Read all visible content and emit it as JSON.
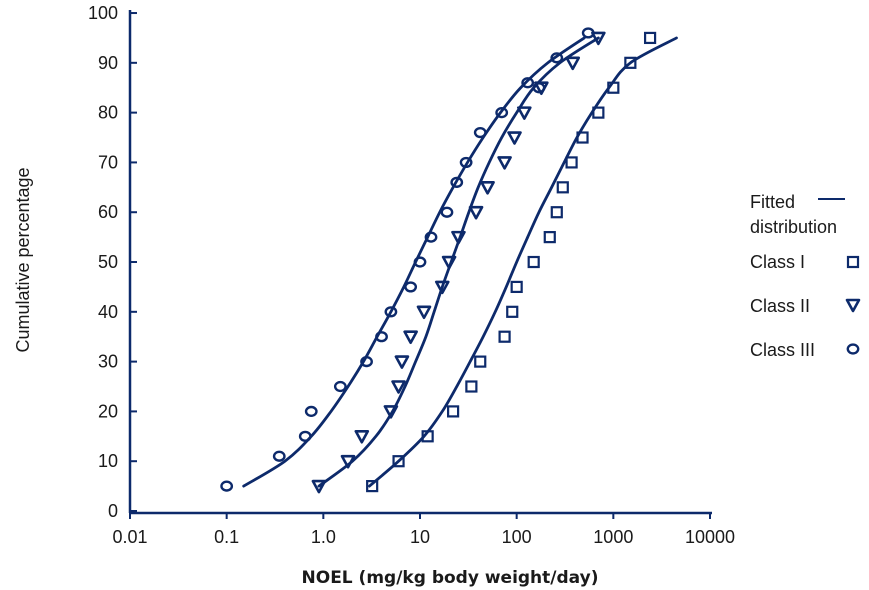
{
  "chart_data": {
    "type": "scatter",
    "xlabel": "NOEL (mg/kg body weight/day)",
    "ylabel": "Cumulative percentage",
    "x_scale": "log",
    "xlim": [
      0.01,
      10000
    ],
    "ylim": [
      0,
      100
    ],
    "x_ticks": [
      "0.01",
      "0.1",
      "1.0",
      "10",
      "100",
      "1000",
      "10000"
    ],
    "y_ticks": [
      "0",
      "10",
      "20",
      "30",
      "40",
      "50",
      "60",
      "70",
      "80",
      "90",
      "100"
    ],
    "legend": {
      "position": "right",
      "fitted_label_line1": "Fitted",
      "fitted_label_line2": "distribution",
      "entries": [
        "Class I",
        "Class II",
        "Class III"
      ]
    },
    "color": "#0d2a6b",
    "series": [
      {
        "name": "Class I",
        "marker": "square",
        "points": [
          [
            3.2,
            5
          ],
          [
            6,
            10
          ],
          [
            12,
            15
          ],
          [
            22,
            20
          ],
          [
            34,
            25
          ],
          [
            42,
            30
          ],
          [
            75,
            35
          ],
          [
            90,
            40
          ],
          [
            100,
            45
          ],
          [
            150,
            50
          ],
          [
            220,
            55
          ],
          [
            260,
            60
          ],
          [
            300,
            65
          ],
          [
            370,
            70
          ],
          [
            480,
            75
          ],
          [
            700,
            80
          ],
          [
            1000,
            85
          ],
          [
            1500,
            90
          ],
          [
            2400,
            95
          ]
        ],
        "fitted": [
          [
            3,
            5
          ],
          [
            6,
            10
          ],
          [
            11,
            15
          ],
          [
            17,
            20
          ],
          [
            24,
            25
          ],
          [
            33,
            30
          ],
          [
            45,
            35
          ],
          [
            60,
            40
          ],
          [
            78,
            45
          ],
          [
            100,
            50
          ],
          [
            130,
            55
          ],
          [
            170,
            60
          ],
          [
            230,
            65
          ],
          [
            310,
            70
          ],
          [
            420,
            75
          ],
          [
            600,
            80
          ],
          [
            900,
            85
          ],
          [
            1500,
            90
          ],
          [
            4500,
            95
          ]
        ]
      },
      {
        "name": "Class II",
        "marker": "triangle",
        "points": [
          [
            0.9,
            5
          ],
          [
            1.8,
            10
          ],
          [
            2.5,
            15
          ],
          [
            5,
            20
          ],
          [
            6,
            25
          ],
          [
            6.5,
            30
          ],
          [
            8,
            35
          ],
          [
            11,
            40
          ],
          [
            17,
            45
          ],
          [
            20,
            50
          ],
          [
            25,
            55
          ],
          [
            38,
            60
          ],
          [
            50,
            65
          ],
          [
            75,
            70
          ],
          [
            95,
            75
          ],
          [
            120,
            80
          ],
          [
            180,
            85
          ],
          [
            380,
            90
          ],
          [
            700,
            95
          ]
        ],
        "fitted": [
          [
            0.9,
            5
          ],
          [
            2,
            10
          ],
          [
            3.5,
            15
          ],
          [
            5.2,
            20
          ],
          [
            7,
            25
          ],
          [
            9,
            30
          ],
          [
            11.5,
            35
          ],
          [
            14,
            40
          ],
          [
            17,
            45
          ],
          [
            21,
            50
          ],
          [
            26,
            55
          ],
          [
            32,
            60
          ],
          [
            40,
            65
          ],
          [
            52,
            70
          ],
          [
            70,
            75
          ],
          [
            100,
            80
          ],
          [
            150,
            85
          ],
          [
            280,
            90
          ],
          [
            700,
            95
          ]
        ]
      },
      {
        "name": "Class III",
        "marker": "circle",
        "points": [
          [
            0.1,
            5
          ],
          [
            0.35,
            11
          ],
          [
            0.65,
            15
          ],
          [
            0.75,
            20
          ],
          [
            1.5,
            25
          ],
          [
            2.8,
            30
          ],
          [
            4,
            35
          ],
          [
            5,
            40
          ],
          [
            8,
            45
          ],
          [
            10,
            50
          ],
          [
            13,
            55
          ],
          [
            19,
            60
          ],
          [
            24,
            66
          ],
          [
            30,
            70
          ],
          [
            42,
            76
          ],
          [
            70,
            80
          ],
          [
            130,
            86
          ],
          [
            170,
            85
          ],
          [
            260,
            91
          ],
          [
            550,
            96
          ]
        ],
        "fitted": [
          [
            0.15,
            5
          ],
          [
            0.4,
            10
          ],
          [
            0.75,
            15
          ],
          [
            1.2,
            20
          ],
          [
            1.8,
            25
          ],
          [
            2.6,
            30
          ],
          [
            3.6,
            35
          ],
          [
            5,
            40
          ],
          [
            6.8,
            45
          ],
          [
            9,
            50
          ],
          [
            12,
            55
          ],
          [
            16,
            60
          ],
          [
            22,
            65
          ],
          [
            31,
            70
          ],
          [
            45,
            75
          ],
          [
            68,
            80
          ],
          [
            110,
            85
          ],
          [
            210,
            90
          ],
          [
            500,
            95
          ]
        ]
      }
    ]
  }
}
